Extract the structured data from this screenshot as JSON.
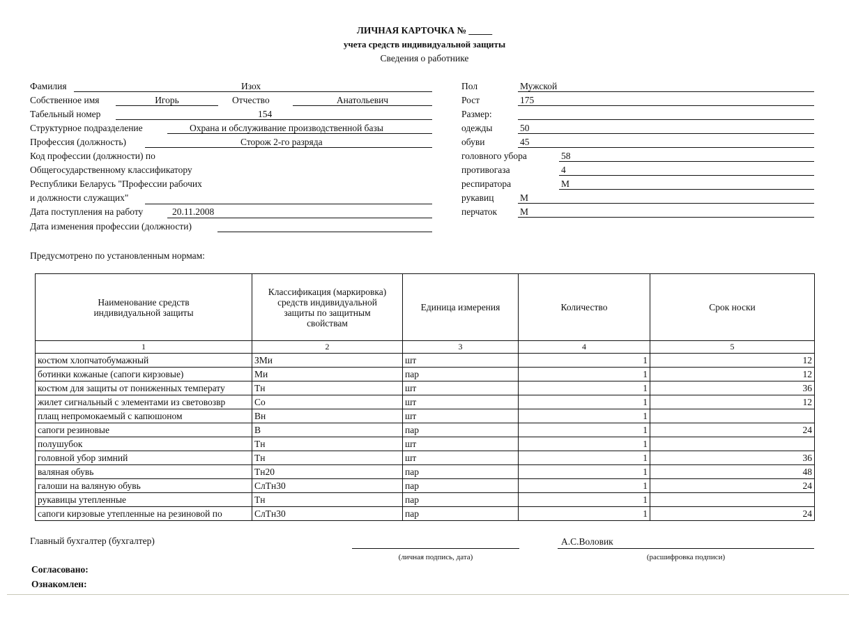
{
  "header": {
    "title": "ЛИЧНАЯ КАРТОЧКА № _____",
    "subtitle": "учета средств индивидуальной защиты",
    "section": "Сведения о работнике"
  },
  "left": {
    "surname_label": "Фамилия",
    "surname": "Изох",
    "name_label": "Собственное имя",
    "name": "Игорь",
    "patronymic_label": "Отчество",
    "patronymic": "Анатольевич",
    "tab_label": "Табельный номер",
    "tab": "154",
    "dept_label": "Структурное подразделение",
    "dept": "Охрана и обслуживание производственной базы",
    "prof_label": "Профессия (должность)",
    "prof": "Сторож 2-го разряда",
    "code_lines": [
      "Код профессии (должности) по",
      "Общегосударственному классификатору",
      "Республики Беларусь \"Профессии рабочих",
      "и должности служащих\""
    ],
    "hire_label": "Дата поступления на работу",
    "hire": "20.11.2008",
    "change_label": "Дата изменения профессии (должности)"
  },
  "right": [
    {
      "label": "Пол",
      "value": "Мужской"
    },
    {
      "label": "Рост",
      "value": "175"
    },
    {
      "label": "Размер:",
      "value": ""
    },
    {
      "label": "одежды",
      "value": "50"
    },
    {
      "label": "обуви",
      "value": "45"
    },
    {
      "label": "головного убора",
      "value": "58"
    },
    {
      "label": "противогаза",
      "value": "4"
    },
    {
      "label": "респиратора",
      "value": "М"
    },
    {
      "label": "рукавиц",
      "value": "М"
    },
    {
      "label": "перчаток",
      "value": "М"
    }
  ],
  "norms_label": "Предусмотрено по установленным нормам:",
  "table": {
    "headers": [
      "Наименование средств индивидуальной защиты",
      "Классификация (маркировка) средств индивидуальной защиты по защитным свойствам",
      "Единица измерения",
      "Количество",
      "Срок носки"
    ],
    "numbers": [
      "1",
      "2",
      "3",
      "4",
      "5"
    ],
    "rows": [
      [
        "костюм хлопчатобумажный",
        "ЗМи",
        "шт",
        "1",
        "12"
      ],
      [
        "ботинки кожаные (сапоги кирзовые)",
        "Ми",
        "пар",
        "1",
        "12"
      ],
      [
        "костюм для защиты от пониженных температу",
        "Тн",
        "шт",
        "1",
        "36"
      ],
      [
        "жилет сигнальный с элементами из световозвр",
        "Со",
        "шт",
        "1",
        "12"
      ],
      [
        "плащ непромокаемый с капюшоном",
        "Вн",
        "шт",
        "1",
        ""
      ],
      [
        "сапоги резиновые",
        "В",
        "пар",
        "1",
        "24"
      ],
      [
        "полушубок",
        "Тн",
        "шт",
        "1",
        ""
      ],
      [
        "головной убор зимний",
        "Тн",
        "шт",
        "1",
        "36"
      ],
      [
        "валяная обувь",
        "Тн20",
        "пар",
        "1",
        "48"
      ],
      [
        "галоши на валяную обувь",
        "СлТн30",
        "пар",
        "1",
        "24"
      ],
      [
        "рукавицы утепленные",
        "Тн",
        "пар",
        "1",
        ""
      ],
      [
        "сапоги кирзовые утепленные на резиновой по",
        "СлТн30",
        "пар",
        "1",
        "24"
      ]
    ]
  },
  "footer": {
    "accountant_label": "Главный бухгалтер (бухгалтер)",
    "signature_caption": "(личная подпись, дата)",
    "decode_name": "А.С.Воловик",
    "decode_caption": "(расшифровка подписи)",
    "agreed": "Согласовано:",
    "acquainted": "Ознакомлен:"
  }
}
